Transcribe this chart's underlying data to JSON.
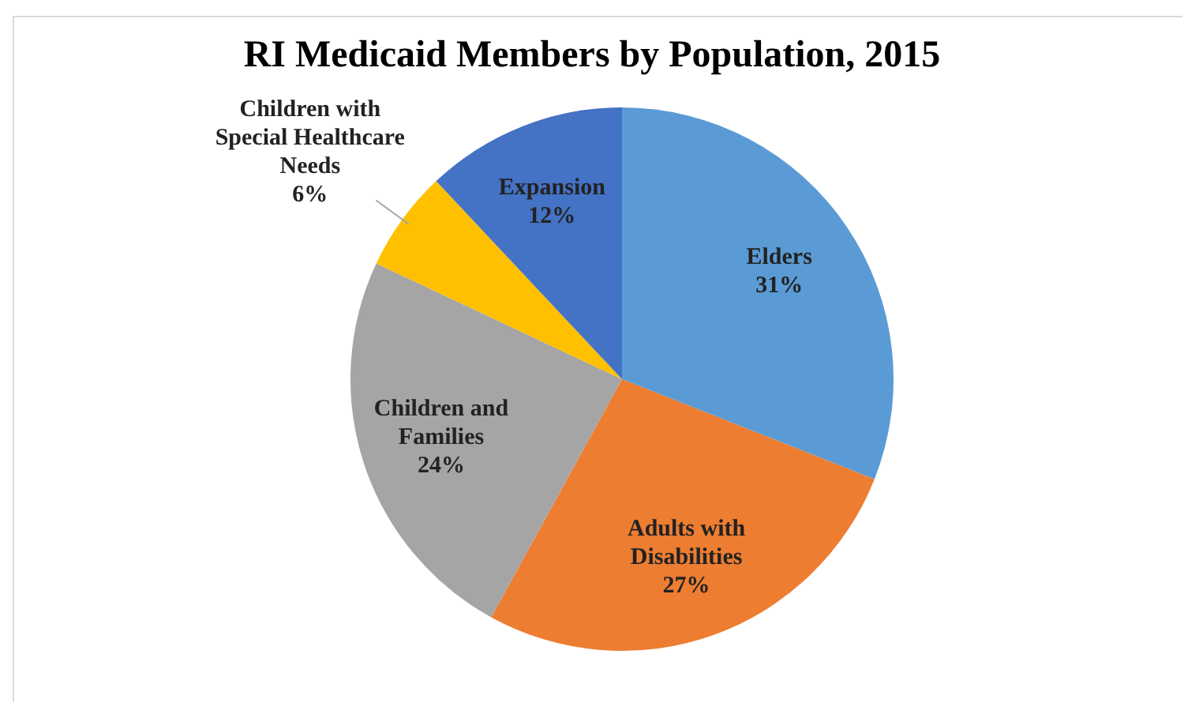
{
  "chart_data": {
    "type": "pie",
    "title": "RI Medicaid Members by Population, 2015",
    "categories": [
      "Elders",
      "Adults with Disabilities",
      "Children and Families",
      "Children with Special Healthcare Needs",
      "Expansion"
    ],
    "values": [
      31,
      27,
      24,
      6,
      12
    ],
    "value_labels": [
      "31%",
      "27%",
      "24%",
      "6%",
      "12%"
    ],
    "colors": [
      "#5b9bd5",
      "#ed7d31",
      "#a5a5a5",
      "#ffc000",
      "#4472c4"
    ],
    "legend": false
  }
}
